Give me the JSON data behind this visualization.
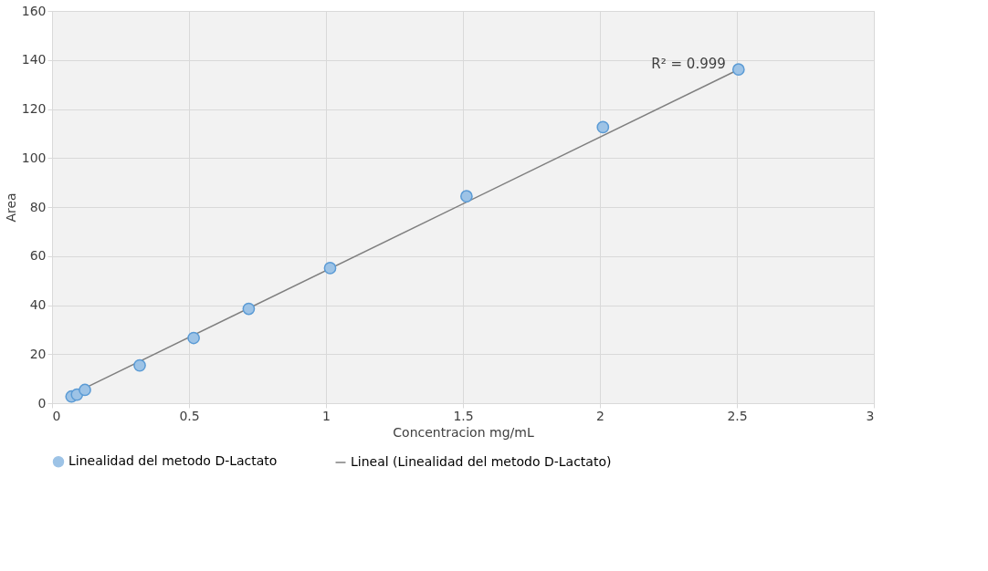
{
  "chart_data": {
    "type": "scatter",
    "xlabel": "Concentracion mg/mL",
    "ylabel": "Area",
    "series": [
      {
        "name": "Linealidad del metodo D-Lactato",
        "type": "scatter",
        "color": "#9dc3e6",
        "marker": "circle",
        "x": [
          0.071,
          0.091,
          0.12,
          0.32,
          0.517,
          0.718,
          1.015,
          1.513,
          2.011,
          2.506
        ],
        "values": [
          2.7,
          3.5,
          5.4,
          15.4,
          26.6,
          38.5,
          55.1,
          84.4,
          112.6,
          136.1
        ]
      },
      {
        "name": "Lineal (Linealidad del metodo D-Lactato)",
        "type": "line",
        "color": "#7f7f7f",
        "line_style": "solid",
        "x": [
          0.071,
          2.506
        ],
        "values": [
          3.5,
          136.1
        ]
      }
    ],
    "annotations": [
      {
        "text": "R² = 0.999",
        "x": 2.506,
        "y": 136.1
      }
    ],
    "xlim": [
      0,
      3
    ],
    "xticks": [
      0,
      0.5,
      1,
      1.5,
      2,
      2.5,
      3
    ],
    "ylim": [
      0,
      160
    ],
    "yticks": [
      0,
      20,
      40,
      60,
      80,
      100,
      120,
      140,
      160
    ],
    "grid": true,
    "legend": "bottom"
  }
}
